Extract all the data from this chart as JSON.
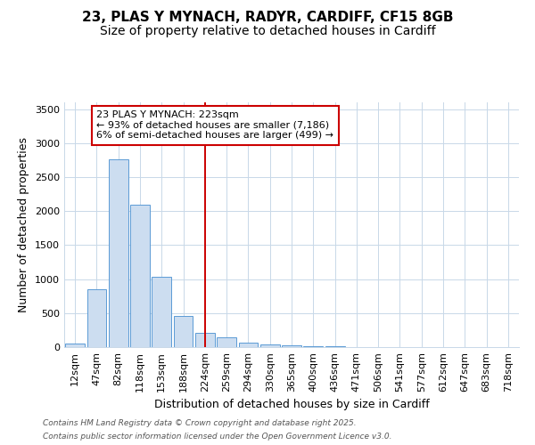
{
  "title1": "23, PLAS Y MYNACH, RADYR, CARDIFF, CF15 8GB",
  "title2": "Size of property relative to detached houses in Cardiff",
  "xlabel": "Distribution of detached houses by size in Cardiff",
  "ylabel": "Number of detached properties",
  "categories": [
    "12sqm",
    "47sqm",
    "82sqm",
    "118sqm",
    "153sqm",
    "188sqm",
    "224sqm",
    "259sqm",
    "294sqm",
    "330sqm",
    "365sqm",
    "400sqm",
    "436sqm",
    "471sqm",
    "506sqm",
    "541sqm",
    "577sqm",
    "612sqm",
    "647sqm",
    "683sqm",
    "718sqm"
  ],
  "values": [
    55,
    850,
    2760,
    2100,
    1030,
    460,
    210,
    150,
    70,
    40,
    30,
    15,
    8,
    5,
    3,
    2,
    1,
    1,
    1,
    0,
    0
  ],
  "bar_color": "#ccddf0",
  "bar_edge_color": "#5b9bd5",
  "red_line_index": 6,
  "red_line_color": "#cc0000",
  "annotation_text": "23 PLAS Y MYNACH: 223sqm\n← 93% of detached houses are smaller (7,186)\n6% of semi-detached houses are larger (499) →",
  "annotation_box_facecolor": "#ffffff",
  "annotation_box_edgecolor": "#cc0000",
  "ylim": [
    0,
    3600
  ],
  "yticks": [
    0,
    500,
    1000,
    1500,
    2000,
    2500,
    3000,
    3500
  ],
  "footer_line1": "Contains HM Land Registry data © Crown copyright and database right 2025.",
  "footer_line2": "Contains public sector information licensed under the Open Government Licence v3.0.",
  "bg_color": "#ffffff",
  "grid_color": "#c8d8e8",
  "title1_fontsize": 11,
  "title2_fontsize": 10,
  "axis_label_fontsize": 9,
  "tick_fontsize": 8,
  "annotation_fontsize": 8,
  "footer_fontsize": 6.5
}
